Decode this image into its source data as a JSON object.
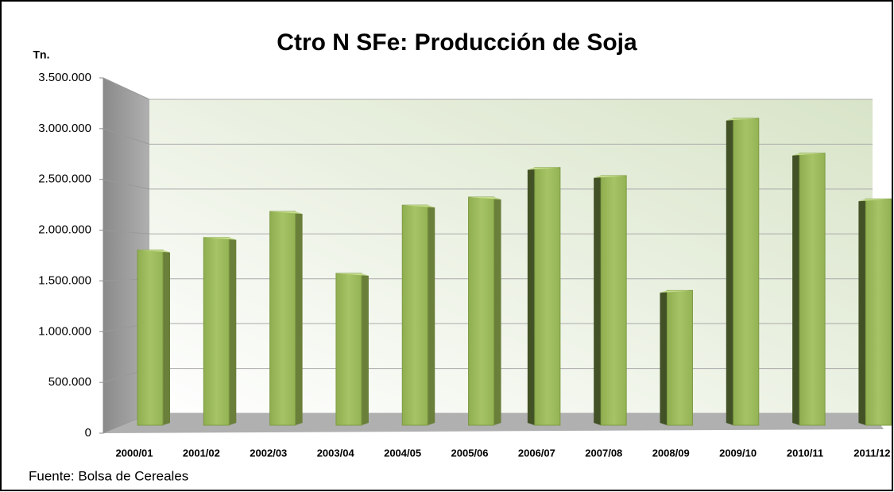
{
  "chart_data": {
    "type": "bar",
    "title": "Ctro N SFe: Producción de Soja",
    "y_label": "Tn.",
    "source": "Fuente: Bolsa de Cereales",
    "categories": [
      "2000/01",
      "2001/02",
      "2002/03",
      "2003/04",
      "2004/05",
      "2005/06",
      "2006/07",
      "2007/08",
      "2008/09",
      "2009/10",
      "2010/11",
      "2011/12"
    ],
    "values": [
      1820000,
      1960000,
      2250000,
      1560000,
      2320000,
      2410000,
      2740000,
      2650000,
      1370000,
      3290000,
      2900000,
      2390000
    ],
    "color": "#9bbb59",
    "ylim": [
      0,
      3500000
    ],
    "yticks": [
      0,
      {
        "value": 500000,
        "label": "500.000"
      },
      {
        "value": 1000000,
        "label": "1.000.000"
      },
      {
        "value": 1500000,
        "label": "1.500.000"
      },
      {
        "value": 2000000,
        "label": "2.000.000"
      },
      {
        "value": 2500000,
        "label": "2.500.000"
      },
      {
        "value": 3000000,
        "label": "3.000.000"
      },
      {
        "value": 3500000,
        "label": "3.500.000"
      }
    ],
    "grid": true
  }
}
